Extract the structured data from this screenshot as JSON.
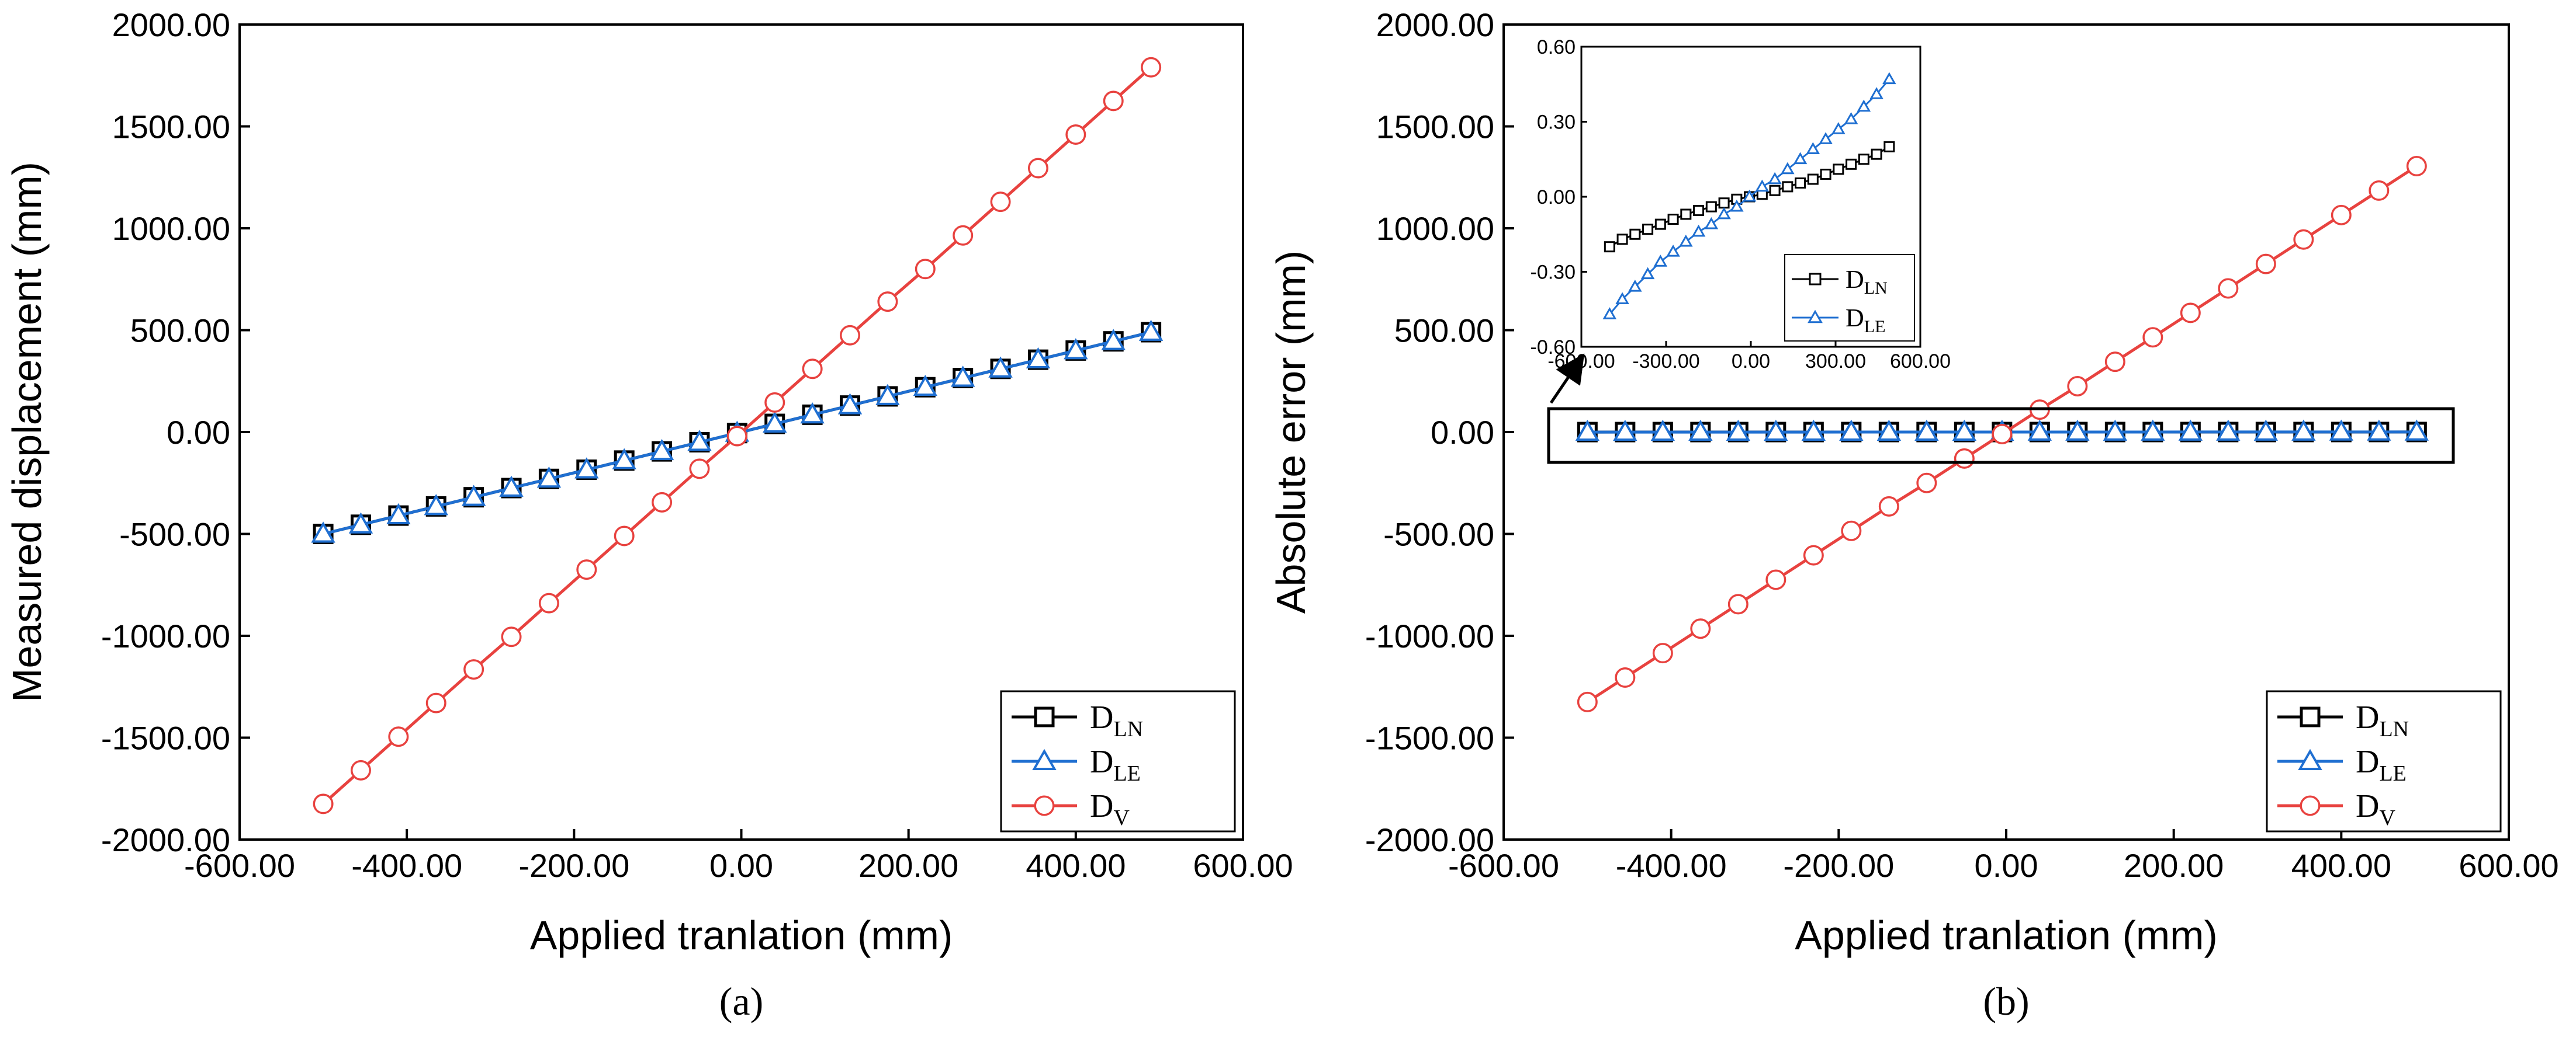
{
  "panels": [
    {
      "label": "(a)",
      "chart_data": {
        "type": "line",
        "xlabel": "Applied tranlation (mm)",
        "ylabel": "Measured displacement (mm)",
        "xlim": [
          -600,
          600
        ],
        "ylim": [
          -2000,
          2000
        ],
        "xticks": [
          -600,
          -400,
          -200,
          0,
          200,
          400,
          600
        ],
        "yticks": [
          -2000,
          -1500,
          -1000,
          -500,
          0,
          500,
          1000,
          1500,
          2000
        ],
        "xtick_labels": [
          "-600.00",
          "-400.00",
          "-200.00",
          "0.00",
          "200.00",
          "400.00",
          "600.00"
        ],
        "ytick_labels": [
          "-2000.00",
          "-1500.00",
          "-1000.00",
          "-500.00",
          "0.00",
          "500.00",
          "1000.00",
          "1500.00",
          "2000.00"
        ],
        "legend_position": "bottom-right",
        "x": [
          -500,
          -455,
          -410,
          -365,
          -320,
          -275,
          -230,
          -185,
          -140,
          -95,
          -50,
          -5,
          40,
          85,
          130,
          175,
          220,
          265,
          310,
          355,
          400,
          445,
          490
        ],
        "series": [
          {
            "name": "D",
            "subscript": "LN",
            "color": "#000000",
            "marker": "square",
            "values": [
              -500,
              -455,
              -410,
              -365,
              -320,
              -275,
              -230,
              -185,
              -140,
              -95,
              -50,
              -5,
              40,
              85,
              130,
              175,
              220,
              265,
              310,
              355,
              400,
              445,
              490
            ]
          },
          {
            "name": "D",
            "subscript": "LE",
            "color": "#1f6fd1",
            "marker": "triangle",
            "values": [
              -500,
              -455,
              -410,
              -365,
              -320,
              -275,
              -230,
              -185,
              -140,
              -95,
              -50,
              -5,
              40,
              85,
              130,
              175,
              220,
              265,
              310,
              355,
              400,
              445,
              490
            ]
          },
          {
            "name": "D",
            "subscript": "V",
            "color": "#e8423f",
            "marker": "circle",
            "values": [
              -1825,
              -1660,
              -1495,
              -1330,
              -1165,
              -1005,
              -840,
              -675,
              -510,
              -345,
              -180,
              -20,
              145,
              310,
              475,
              640,
              800,
              965,
              1130,
              1295,
              1460,
              1625,
              1790
            ]
          }
        ]
      }
    },
    {
      "label": "(b)",
      "chart_data": {
        "type": "line",
        "xlabel": "Applied tranlation (mm)",
        "ylabel": "Absolute error (mm)",
        "xlim": [
          -600,
          600
        ],
        "ylim": [
          -2000,
          2000
        ],
        "xticks": [
          -600,
          -400,
          -200,
          0,
          200,
          400,
          600
        ],
        "yticks": [
          -2000,
          -1500,
          -1000,
          -500,
          0,
          500,
          1000,
          1500,
          2000
        ],
        "xtick_labels": [
          "-600.00",
          "-400.00",
          "-200.00",
          "0.00",
          "200.00",
          "400.00",
          "600.00"
        ],
        "ytick_labels": [
          "-2000.00",
          "-1500.00",
          "-1000.00",
          "-500.00",
          "0.00",
          "500.00",
          "1000.00",
          "1500.00",
          "2000.00"
        ],
        "legend_position": "bottom-right",
        "x": [
          -500,
          -455,
          -410,
          -365,
          -320,
          -275,
          -230,
          -185,
          -140,
          -95,
          -50,
          -5,
          40,
          85,
          130,
          175,
          220,
          265,
          310,
          355,
          400,
          445,
          490
        ],
        "series": [
          {
            "name": "D",
            "subscript": "LN",
            "color": "#000000",
            "marker": "square",
            "values": [
              -0.2,
              -0.17,
              -0.15,
              -0.13,
              -0.11,
              -0.09,
              -0.07,
              -0.055,
              -0.04,
              -0.025,
              -0.01,
              0,
              0.01,
              0.025,
              0.04,
              0.055,
              0.07,
              0.09,
              0.11,
              0.13,
              0.15,
              0.17,
              0.2
            ]
          },
          {
            "name": "D",
            "subscript": "LE",
            "color": "#1f6fd1",
            "marker": "triangle",
            "values": [
              -0.47,
              -0.41,
              -0.36,
              -0.31,
              -0.26,
              -0.22,
              -0.18,
              -0.14,
              -0.11,
              -0.07,
              -0.04,
              0,
              0.04,
              0.07,
              0.11,
              0.15,
              0.19,
              0.23,
              0.27,
              0.31,
              0.36,
              0.41,
              0.47
            ]
          },
          {
            "name": "D",
            "subscript": "V",
            "color": "#e8423f",
            "marker": "circle",
            "values": [
              -1325,
              -1205,
              -1085,
              -965,
              -845,
              -725,
              -605,
              -485,
              -365,
              -250,
              -130,
              -10,
              110,
              225,
              345,
              465,
              585,
              705,
              825,
              945,
              1065,
              1185,
              1305
            ]
          }
        ]
      },
      "inset": {
        "chart_data": {
          "type": "line",
          "xlim": [
            -600,
            600
          ],
          "ylim": [
            -0.6,
            0.6
          ],
          "xticks": [
            -600,
            -300,
            0,
            300,
            600
          ],
          "yticks": [
            -0.6,
            -0.3,
            0,
            0.3,
            0.6
          ],
          "xtick_labels": [
            "-600.00",
            "-300.00",
            "0.00",
            "300.00",
            "600.00"
          ],
          "ytick_labels": [
            "-0.60",
            "-0.30",
            "0.00",
            "0.30",
            "0.60"
          ],
          "legend_position": "bottom-right",
          "x": [
            -500,
            -455,
            -410,
            -365,
            -320,
            -275,
            -230,
            -185,
            -140,
            -95,
            -50,
            -5,
            40,
            85,
            130,
            175,
            220,
            265,
            310,
            355,
            400,
            445,
            490
          ],
          "series": [
            {
              "name": "D",
              "subscript": "LN",
              "color": "#000000",
              "marker": "square",
              "values": [
                -0.2,
                -0.17,
                -0.15,
                -0.13,
                -0.11,
                -0.09,
                -0.07,
                -0.055,
                -0.04,
                -0.025,
                -0.01,
                0,
                0.01,
                0.025,
                0.04,
                0.055,
                0.07,
                0.09,
                0.11,
                0.13,
                0.15,
                0.17,
                0.2
              ]
            },
            {
              "name": "D",
              "subscript": "LE",
              "color": "#1f6fd1",
              "marker": "triangle",
              "values": [
                -0.47,
                -0.41,
                -0.36,
                -0.31,
                -0.26,
                -0.22,
                -0.18,
                -0.14,
                -0.11,
                -0.07,
                -0.04,
                0,
                0.04,
                0.07,
                0.11,
                0.15,
                0.19,
                0.23,
                0.27,
                0.31,
                0.36,
                0.41,
                0.47
              ]
            }
          ]
        }
      }
    }
  ]
}
